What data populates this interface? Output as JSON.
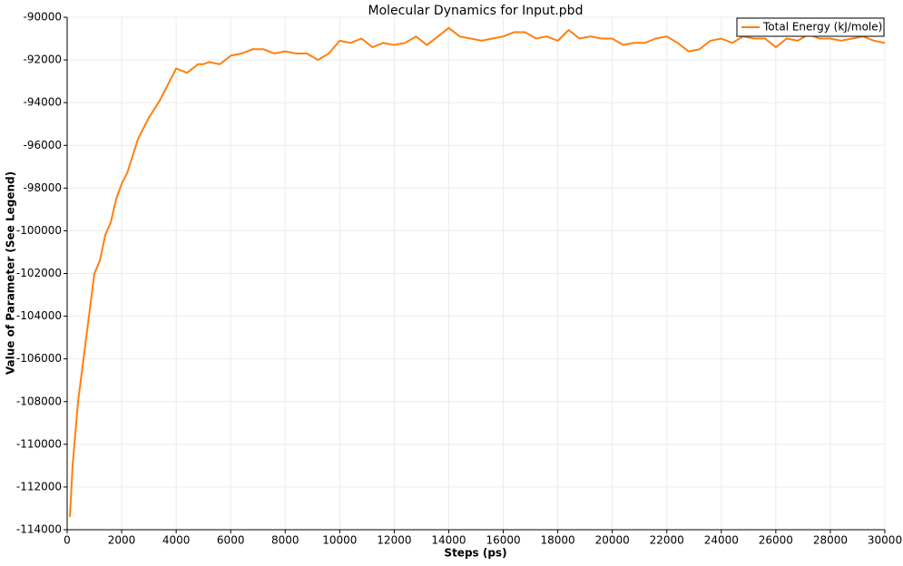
{
  "chart_data": {
    "type": "line",
    "title": "Molecular Dynamics for Input.pbd",
    "x_label": "Steps (ps)",
    "y_label": "Value of Parameter (See Legend)",
    "x": [
      100,
      200,
      400,
      600,
      800,
      1000,
      1200,
      1400,
      1600,
      1800,
      2000,
      2200,
      2400,
      2600,
      2800,
      3000,
      3200,
      3400,
      3600,
      3800,
      4000,
      4200,
      4400,
      4600,
      4800,
      5000,
      5200,
      5600,
      6000,
      6400,
      6800,
      7200,
      7600,
      8000,
      8400,
      8800,
      9200,
      9600,
      10000,
      10400,
      10800,
      11200,
      11600,
      12000,
      12400,
      12800,
      13200,
      13600,
      14000,
      14400,
      14800,
      15200,
      15600,
      16000,
      16400,
      16800,
      17200,
      17600,
      18000,
      18400,
      18800,
      19200,
      19600,
      20000,
      20400,
      20800,
      21200,
      21600,
      22000,
      22400,
      22800,
      23200,
      23600,
      24000,
      24400,
      24800,
      25200,
      25600,
      26000,
      26400,
      26800,
      27200,
      27600,
      28000,
      28400,
      28800,
      29200,
      29600,
      30000
    ],
    "series": [
      {
        "name": "Total Energy (kJ/mole)",
        "color": "#ff7f0e",
        "values": [
          -113400,
          -111000,
          -108000,
          -106000,
          -104000,
          -102000,
          -101400,
          -100200,
          -99600,
          -98500,
          -97800,
          -97300,
          -96500,
          -95700,
          -95200,
          -94700,
          -94300,
          -93900,
          -93400,
          -92900,
          -92400,
          -92500,
          -92600,
          -92400,
          -92200,
          -92200,
          -92100,
          -92200,
          -91800,
          -91700,
          -91500,
          -91500,
          -91700,
          -91600,
          -91700,
          -91700,
          -92000,
          -91700,
          -91100,
          -91200,
          -91000,
          -91400,
          -91200,
          -91300,
          -91200,
          -90900,
          -91300,
          -90900,
          -90500,
          -90900,
          -91000,
          -91100,
          -91000,
          -90900,
          -90700,
          -90700,
          -91000,
          -90900,
          -91100,
          -90600,
          -91000,
          -90900,
          -91000,
          -91000,
          -91300,
          -91200,
          -91200,
          -91000,
          -90900,
          -91200,
          -91600,
          -91500,
          -91100,
          -91000,
          -91200,
          -90900,
          -91000,
          -91000,
          -91400,
          -91000,
          -91100,
          -90800,
          -91000,
          -91000,
          -91100,
          -91000,
          -90900,
          -91100,
          -91200
        ]
      }
    ],
    "xlim": [
      0,
      30000
    ],
    "ylim": [
      -114000,
      -90000
    ],
    "xticks": [
      0,
      2000,
      4000,
      6000,
      8000,
      10000,
      12000,
      14000,
      16000,
      18000,
      20000,
      22000,
      24000,
      26000,
      28000,
      30000
    ],
    "yticks": [
      -114000,
      -112000,
      -110000,
      -108000,
      -106000,
      -104000,
      -102000,
      -100000,
      -98000,
      -96000,
      -94000,
      -92000,
      -90000
    ],
    "grid": true,
    "legend": "upper right"
  }
}
